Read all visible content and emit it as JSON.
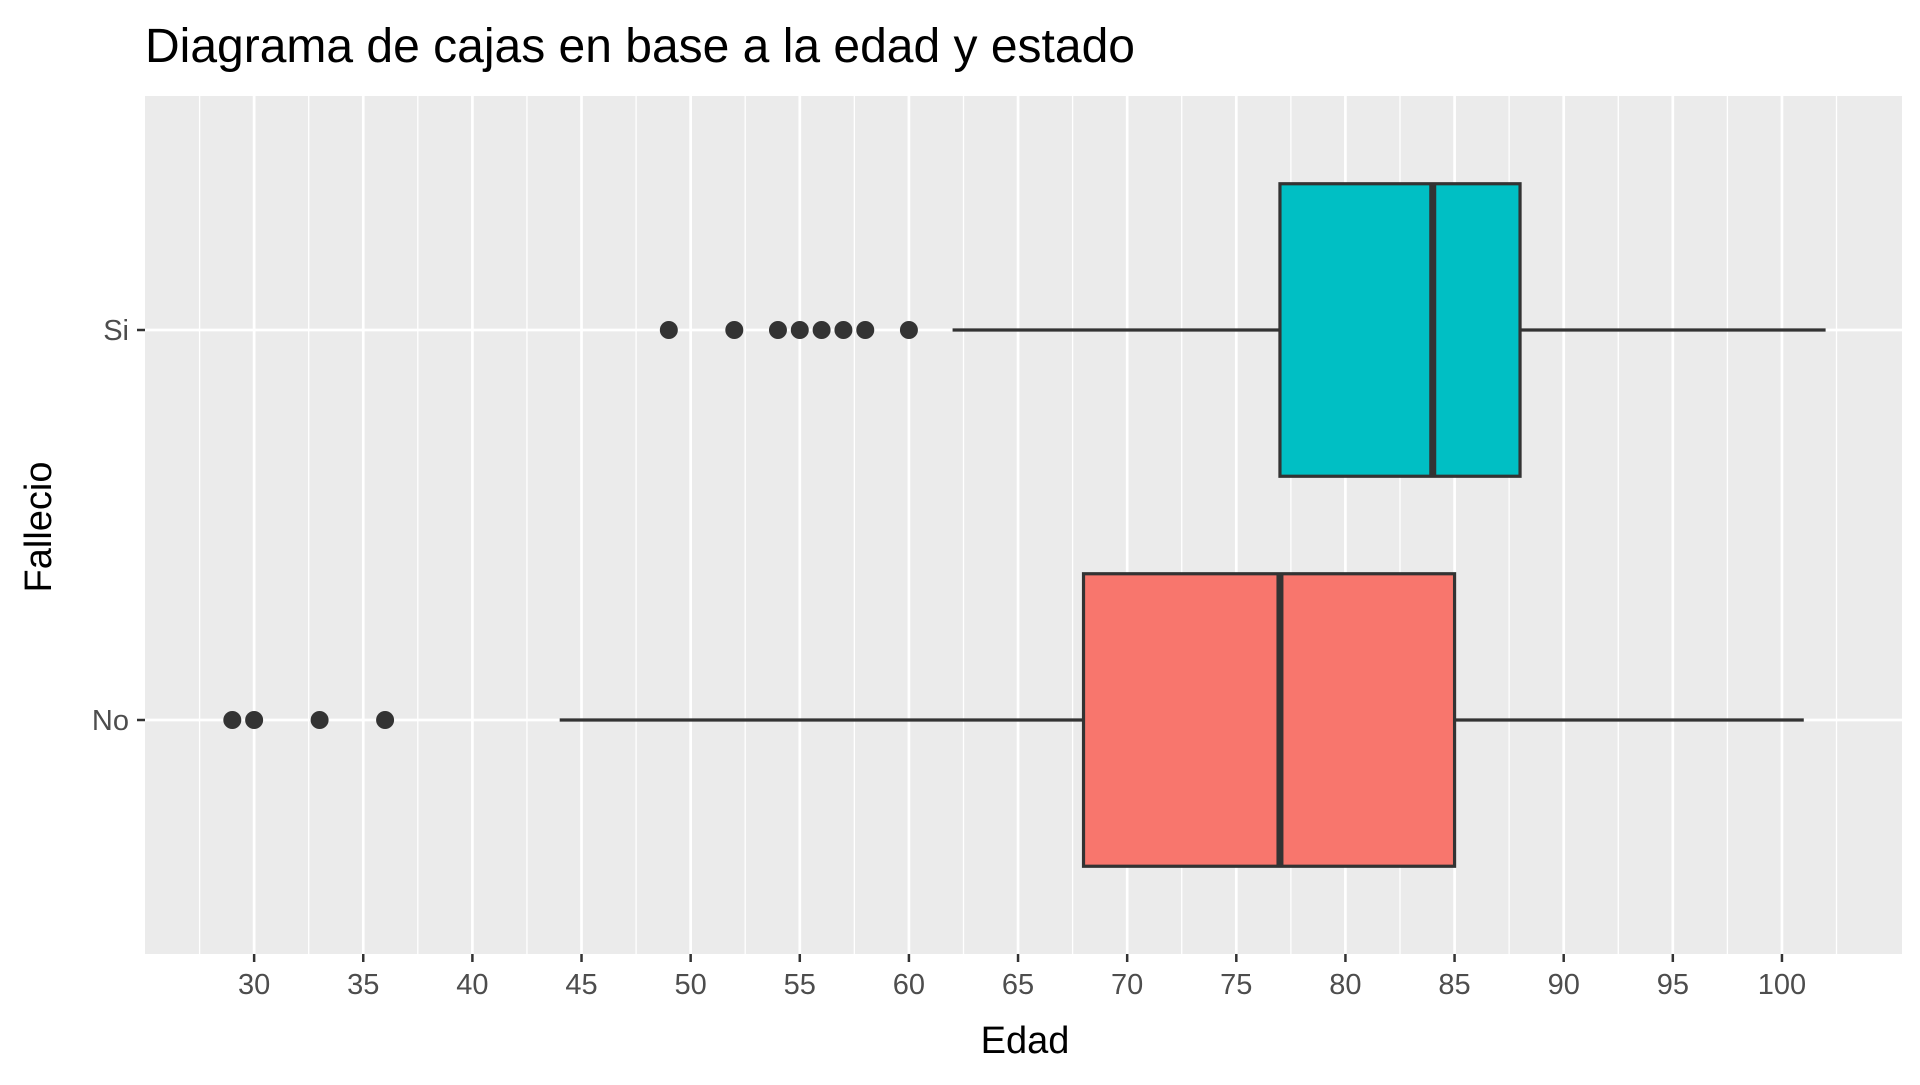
{
  "chart_data": {
    "type": "boxplot",
    "orientation": "horizontal",
    "title": "Diagrama de cajas en base a la edad y estado",
    "xlabel": "Edad",
    "ylabel": "Fallecio",
    "xlim": [
      25,
      105.5
    ],
    "x_ticks": [
      30,
      35,
      40,
      45,
      50,
      55,
      60,
      65,
      70,
      75,
      80,
      85,
      90,
      95,
      100
    ],
    "x_minor_ticks": [
      27.5,
      32.5,
      37.5,
      42.5,
      47.5,
      52.5,
      57.5,
      62.5,
      67.5,
      72.5,
      77.5,
      82.5,
      87.5,
      92.5,
      97.5,
      102.5
    ],
    "categories": [
      "No",
      "Si"
    ],
    "grid": true,
    "legend": "none",
    "panel_background": "#ebebeb",
    "series": [
      {
        "category": "No",
        "color": "#f8766d",
        "whisker_low": 44,
        "q1": 68,
        "median": 77,
        "q3": 85,
        "whisker_high": 101,
        "outliers": [
          29,
          30,
          33,
          36
        ]
      },
      {
        "category": "Si",
        "color": "#00bfc4",
        "whisker_low": 62,
        "q1": 77,
        "median": 84,
        "q3": 88,
        "whisker_high": 102,
        "outliers": [
          49,
          52,
          54,
          55,
          56,
          57,
          58,
          60
        ]
      }
    ]
  }
}
